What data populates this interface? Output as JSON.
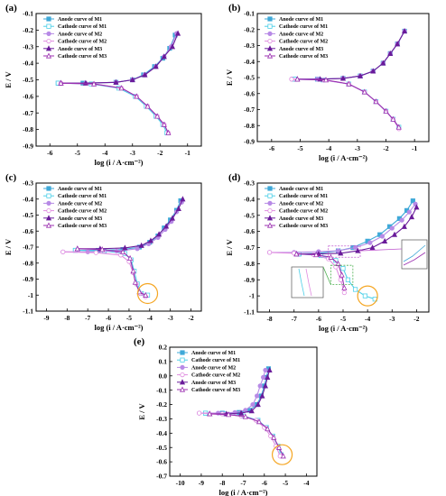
{
  "figure": {
    "series_styles": [
      {
        "name": "Anode curve of M1",
        "color": "#3fa9d8",
        "marker": "square-filled"
      },
      {
        "name": "Cathode curve of M1",
        "color": "#4fd0e8",
        "marker": "square-open"
      },
      {
        "name": "Anode curve of M2",
        "color": "#b78ae6",
        "marker": "circle-filled"
      },
      {
        "name": "Cathode curve of M2",
        "color": "#e08ce0",
        "marker": "circle-open"
      },
      {
        "name": "Anode curve of M3",
        "color": "#6a1b9a",
        "marker": "triangle-filled"
      },
      {
        "name": "Cathode curve of M3",
        "color": "#9b2fb0",
        "marker": "triangle-open"
      }
    ],
    "highlight_color": "#f5a623",
    "inset_box_color": "#4caf50",
    "inset_box_color_2": "#c05ad0"
  },
  "chart_data": [
    {
      "panel": "(a)",
      "type": "line",
      "xlabel": "log (i / A·cm⁻²)",
      "ylabel": "E / V",
      "xlim": [
        -6.5,
        -0.5
      ],
      "ylim": [
        -0.9,
        -0.1
      ],
      "xticks": [
        -6,
        -5,
        -4,
        -3,
        -2,
        -1
      ],
      "yticks": [
        -0.9,
        -0.8,
        -0.7,
        -0.6,
        -0.5,
        -0.4,
        -0.3,
        -0.2,
        -0.1
      ],
      "legend": [
        "Anode curve of M1",
        "Cathode curve of M1",
        "Anode curve of M2",
        "Cathode curve of M2",
        "Anode curve of M3",
        "Cathode curve of M3"
      ],
      "series": [
        {
          "name": "Anode curve of M1",
          "x": [
            -5.7,
            -4.8,
            -3.6,
            -3.0,
            -2.6,
            -2.2,
            -1.9,
            -1.65,
            -1.45
          ],
          "y": [
            -0.52,
            -0.52,
            -0.515,
            -0.5,
            -0.47,
            -0.42,
            -0.37,
            -0.31,
            -0.23
          ]
        },
        {
          "name": "Cathode curve of M1",
          "x": [
            -5.7,
            -4.5,
            -3.5,
            -2.9,
            -2.5,
            -2.15,
            -1.9,
            -1.75
          ],
          "y": [
            -0.52,
            -0.525,
            -0.55,
            -0.6,
            -0.66,
            -0.72,
            -0.77,
            -0.82
          ]
        },
        {
          "name": "Anode curve of M2",
          "x": [
            -5.6,
            -4.7,
            -3.6,
            -3.0,
            -2.55,
            -2.15,
            -1.85,
            -1.6,
            -1.4
          ],
          "y": [
            -0.52,
            -0.52,
            -0.515,
            -0.5,
            -0.47,
            -0.42,
            -0.36,
            -0.3,
            -0.22
          ]
        },
        {
          "name": "Cathode curve of M2",
          "x": [
            -5.6,
            -4.4,
            -3.4,
            -2.85,
            -2.45,
            -2.1,
            -1.85,
            -1.7
          ],
          "y": [
            -0.52,
            -0.525,
            -0.55,
            -0.6,
            -0.66,
            -0.72,
            -0.77,
            -0.82
          ]
        },
        {
          "name": "Anode curve of M3",
          "x": [
            -5.6,
            -4.7,
            -3.6,
            -3.0,
            -2.55,
            -2.15,
            -1.85,
            -1.55,
            -1.35
          ],
          "y": [
            -0.52,
            -0.52,
            -0.515,
            -0.5,
            -0.47,
            -0.42,
            -0.36,
            -0.3,
            -0.22
          ]
        },
        {
          "name": "Cathode curve of M3",
          "x": [
            -5.6,
            -4.4,
            -3.4,
            -2.85,
            -2.45,
            -2.1,
            -1.85,
            -1.7
          ],
          "y": [
            -0.52,
            -0.525,
            -0.55,
            -0.6,
            -0.66,
            -0.72,
            -0.77,
            -0.82
          ]
        }
      ]
    },
    {
      "panel": "(b)",
      "type": "line",
      "xlabel": "log (i / A·cm⁻²)",
      "ylabel": "E / V",
      "xlim": [
        -6.5,
        -0.5
      ],
      "ylim": [
        -0.9,
        -0.1
      ],
      "xticks": [
        -6,
        -5,
        -4,
        -3,
        -2,
        -1
      ],
      "yticks": [
        -0.9,
        -0.8,
        -0.7,
        -0.6,
        -0.5,
        -0.4,
        -0.3,
        -0.2,
        -0.1
      ],
      "legend": [
        "Anode curve of M1",
        "Cathode curve of M1",
        "Anode curve of M2",
        "Cathode curve of M2",
        "Anode curve of M3",
        "Cathode curve of M3"
      ],
      "series": [
        {
          "name": "Anode curve of M1",
          "x": [
            -5.2,
            -4.4,
            -3.5,
            -2.9,
            -2.45,
            -2.1,
            -1.85,
            -1.6,
            -1.35
          ],
          "y": [
            -0.51,
            -0.51,
            -0.505,
            -0.49,
            -0.46,
            -0.41,
            -0.35,
            -0.29,
            -0.21
          ]
        },
        {
          "name": "Cathode curve of M1",
          "x": [
            -5.2,
            -4.2,
            -3.3,
            -2.75,
            -2.35,
            -2.0,
            -1.75,
            -1.55
          ],
          "y": [
            -0.51,
            -0.515,
            -0.54,
            -0.59,
            -0.65,
            -0.71,
            -0.76,
            -0.81
          ]
        },
        {
          "name": "Anode curve of M2",
          "x": [
            -5.3,
            -4.4,
            -3.5,
            -2.9,
            -2.45,
            -2.1,
            -1.85,
            -1.6,
            -1.35
          ],
          "y": [
            -0.51,
            -0.51,
            -0.505,
            -0.49,
            -0.46,
            -0.41,
            -0.35,
            -0.29,
            -0.21
          ]
        },
        {
          "name": "Cathode curve of M2",
          "x": [
            -5.3,
            -4.2,
            -3.3,
            -2.75,
            -2.35,
            -2.0,
            -1.75,
            -1.55
          ],
          "y": [
            -0.51,
            -0.515,
            -0.54,
            -0.59,
            -0.65,
            -0.71,
            -0.76,
            -0.82
          ]
        },
        {
          "name": "Anode curve of M3",
          "x": [
            -5.1,
            -4.3,
            -3.5,
            -2.9,
            -2.45,
            -2.1,
            -1.85,
            -1.6,
            -1.35
          ],
          "y": [
            -0.51,
            -0.51,
            -0.505,
            -0.49,
            -0.46,
            -0.41,
            -0.35,
            -0.29,
            -0.21
          ]
        },
        {
          "name": "Cathode curve of M3",
          "x": [
            -5.1,
            -4.1,
            -3.3,
            -2.75,
            -2.35,
            -2.0,
            -1.75,
            -1.55
          ],
          "y": [
            -0.51,
            -0.515,
            -0.54,
            -0.59,
            -0.65,
            -0.71,
            -0.76,
            -0.81
          ]
        }
      ]
    },
    {
      "panel": "(c)",
      "type": "line",
      "xlabel": "log (i / A·cm⁻²)",
      "ylabel": "E / V",
      "xlim": [
        -9.5,
        -1.5
      ],
      "ylim": [
        -1.1,
        -0.3
      ],
      "xticks": [
        -9,
        -8,
        -7,
        -6,
        -5,
        -4,
        -3,
        -2
      ],
      "yticks": [
        -1.1,
        -1.0,
        -0.9,
        -0.8,
        -0.7,
        -0.6,
        -0.5,
        -0.4,
        -0.3
      ],
      "legend": [
        "Anode curve of M1",
        "Cathode curve of M1",
        "Anode curve of M2",
        "Cathode curve of M2",
        "Anode curve of M3",
        "Cathode curve of M3"
      ],
      "highlight_circle": {
        "x": -4.1,
        "y": -0.99
      },
      "series": [
        {
          "name": "Anode curve of M1",
          "x": [
            -7.6,
            -6.5,
            -5.3,
            -4.5,
            -4.0,
            -3.6,
            -3.3,
            -3.0,
            -2.7,
            -2.5
          ],
          "y": [
            -0.72,
            -0.72,
            -0.715,
            -0.7,
            -0.67,
            -0.63,
            -0.58,
            -0.53,
            -0.47,
            -0.41
          ]
        },
        {
          "name": "Cathode curve of M1",
          "x": [
            -7.6,
            -6.2,
            -5.2,
            -4.9,
            -4.75,
            -4.6,
            -4.4,
            -4.1
          ],
          "y": [
            -0.72,
            -0.725,
            -0.74,
            -0.78,
            -0.85,
            -0.93,
            -0.99,
            -1.0
          ]
        },
        {
          "name": "Anode curve of M2",
          "x": [
            -8.2,
            -7.0,
            -5.6,
            -4.6,
            -4.05,
            -3.6,
            -3.25,
            -2.95,
            -2.7,
            -2.45
          ],
          "y": [
            -0.73,
            -0.73,
            -0.725,
            -0.71,
            -0.68,
            -0.64,
            -0.59,
            -0.54,
            -0.48,
            -0.42
          ]
        },
        {
          "name": "Cathode curve of M2",
          "x": [
            -8.2,
            -6.6,
            -5.4,
            -5.0,
            -4.8,
            -4.65,
            -4.45,
            -4.2
          ],
          "y": [
            -0.73,
            -0.735,
            -0.75,
            -0.79,
            -0.86,
            -0.93,
            -0.99,
            -1.01
          ]
        },
        {
          "name": "Anode curve of M3",
          "x": [
            -7.5,
            -6.4,
            -5.2,
            -4.4,
            -3.95,
            -3.55,
            -3.2,
            -2.9,
            -2.6,
            -2.4
          ],
          "y": [
            -0.71,
            -0.71,
            -0.705,
            -0.69,
            -0.66,
            -0.62,
            -0.57,
            -0.52,
            -0.46,
            -0.4
          ]
        },
        {
          "name": "Cathode curve of M3",
          "x": [
            -7.5,
            -6.3,
            -5.3,
            -4.95,
            -4.8,
            -4.7,
            -4.5,
            -4.2
          ],
          "y": [
            -0.71,
            -0.715,
            -0.73,
            -0.77,
            -0.85,
            -0.92,
            -0.98,
            -1.0
          ]
        }
      ]
    },
    {
      "panel": "(d)",
      "type": "line",
      "xlabel": "log (i / A·cm⁻²)",
      "ylabel": "E / V",
      "xlim": [
        -8.5,
        -1.5
      ],
      "ylim": [
        -1.1,
        -0.3
      ],
      "xticks": [
        -8,
        -7,
        -6,
        -5,
        -4,
        -3,
        -2
      ],
      "yticks": [
        -1.1,
        -1.0,
        -0.9,
        -0.8,
        -0.7,
        -0.6,
        -0.5,
        -0.4,
        -0.3
      ],
      "legend": [
        "Anode curve of M1",
        "Cathode curve of M1",
        "Anode curve of M2",
        "Cathode curve of M2",
        "Anode curve of M3",
        "Cathode curve of M3"
      ],
      "highlight_circle": {
        "x": -4.0,
        "y": -1.0
      },
      "series": [
        {
          "name": "Anode curve of M1",
          "x": [
            -6.8,
            -6.0,
            -5.2,
            -4.6,
            -4.0,
            -3.5,
            -3.1,
            -2.7,
            -2.4,
            -2.15
          ],
          "y": [
            -0.74,
            -0.735,
            -0.72,
            -0.7,
            -0.66,
            -0.62,
            -0.57,
            -0.52,
            -0.47,
            -0.41
          ]
        },
        {
          "name": "Cathode curve of M1",
          "x": [
            -6.8,
            -5.9,
            -5.3,
            -5.0,
            -4.8,
            -4.5,
            -4.1,
            -3.7
          ],
          "y": [
            -0.74,
            -0.75,
            -0.78,
            -0.83,
            -0.9,
            -0.96,
            -1.0,
            -1.02
          ]
        },
        {
          "name": "Anode curve of M2",
          "x": [
            -8.0,
            -7.0,
            -6.0,
            -5.2,
            -4.5,
            -3.9,
            -3.4,
            -3.0,
            -2.6,
            -2.3,
            -2.05
          ],
          "y": [
            -0.73,
            -0.73,
            -0.725,
            -0.72,
            -0.7,
            -0.67,
            -0.63,
            -0.58,
            -0.53,
            -0.48,
            -0.43
          ]
        },
        {
          "name": "Cathode curve of M2",
          "x": [
            -8.0,
            -7.0,
            -6.2,
            -5.6,
            -5.3,
            -5.1,
            -4.95
          ],
          "y": [
            -0.73,
            -0.735,
            -0.745,
            -0.77,
            -0.82,
            -0.9,
            -0.98
          ]
        },
        {
          "name": "Anode curve of M3",
          "x": [
            -6.9,
            -6.0,
            -5.1,
            -4.4,
            -3.8,
            -3.3,
            -2.9,
            -2.5,
            -2.2,
            -2.0
          ],
          "y": [
            -0.74,
            -0.74,
            -0.735,
            -0.72,
            -0.7,
            -0.66,
            -0.62,
            -0.57,
            -0.51,
            -0.45
          ]
        },
        {
          "name": "Cathode curve of M3",
          "x": [
            -6.9,
            -6.1,
            -5.5,
            -5.2,
            -5.05,
            -4.95
          ],
          "y": [
            -0.74,
            -0.745,
            -0.76,
            -0.8,
            -0.87,
            -0.95
          ]
        }
      ]
    },
    {
      "panel": "(e)",
      "type": "line",
      "xlabel": "log (i / A·cm⁻²)",
      "ylabel": "E / V",
      "xlim": [
        -10.5,
        -3.5
      ],
      "ylim": [
        -0.7,
        0.2
      ],
      "xticks": [
        -10,
        -9,
        -8,
        -7,
        -6,
        -5,
        -4
      ],
      "yticks": [
        -0.7,
        -0.6,
        -0.5,
        -0.4,
        -0.3,
        -0.2,
        -0.1,
        0.0,
        0.1,
        0.2
      ],
      "legend": [
        "Anode curve of M1",
        "Cathode curve of M1",
        "Anode curve of M2",
        "Cathode curve of M2",
        "Anode curve of M3",
        "Cathode curve of M3"
      ],
      "highlight_circle": {
        "x": -5.15,
        "y": -0.55
      },
      "series": [
        {
          "name": "Anode curve of M1",
          "x": [
            -8.8,
            -8.0,
            -7.2,
            -6.7,
            -6.35,
            -6.15,
            -6.0,
            -5.9,
            -5.8
          ],
          "y": [
            -0.26,
            -0.26,
            -0.255,
            -0.24,
            -0.2,
            -0.14,
            -0.07,
            -0.01,
            0.05
          ]
        },
        {
          "name": "Cathode curve of M1",
          "x": [
            -8.8,
            -7.9,
            -7.0,
            -6.3,
            -5.9,
            -5.6,
            -5.35,
            -5.2
          ],
          "y": [
            -0.26,
            -0.265,
            -0.28,
            -0.31,
            -0.36,
            -0.42,
            -0.49,
            -0.55
          ]
        },
        {
          "name": "Anode curve of M2",
          "x": [
            -9.1,
            -8.2,
            -7.4,
            -6.9,
            -6.55,
            -6.35,
            -6.2,
            -6.05,
            -5.95
          ],
          "y": [
            -0.26,
            -0.26,
            -0.255,
            -0.24,
            -0.2,
            -0.14,
            -0.07,
            -0.01,
            0.04
          ]
        },
        {
          "name": "Cathode curve of M2",
          "x": [
            -9.1,
            -8.0,
            -7.1,
            -6.4,
            -6.0,
            -5.7,
            -5.45,
            -5.25
          ],
          "y": [
            -0.26,
            -0.265,
            -0.28,
            -0.31,
            -0.36,
            -0.42,
            -0.49,
            -0.56
          ]
        },
        {
          "name": "Anode curve of M3",
          "x": [
            -8.6,
            -7.8,
            -7.1,
            -6.6,
            -6.3,
            -6.1,
            -5.95,
            -5.85,
            -5.75
          ],
          "y": [
            -0.265,
            -0.265,
            -0.26,
            -0.245,
            -0.2,
            -0.14,
            -0.07,
            -0.01,
            0.04
          ]
        },
        {
          "name": "Cathode curve of M3",
          "x": [
            -8.6,
            -7.7,
            -6.9,
            -6.25,
            -5.85,
            -5.55,
            -5.3,
            -5.1
          ],
          "y": [
            -0.265,
            -0.27,
            -0.285,
            -0.32,
            -0.37,
            -0.43,
            -0.5,
            -0.56
          ]
        }
      ]
    }
  ]
}
